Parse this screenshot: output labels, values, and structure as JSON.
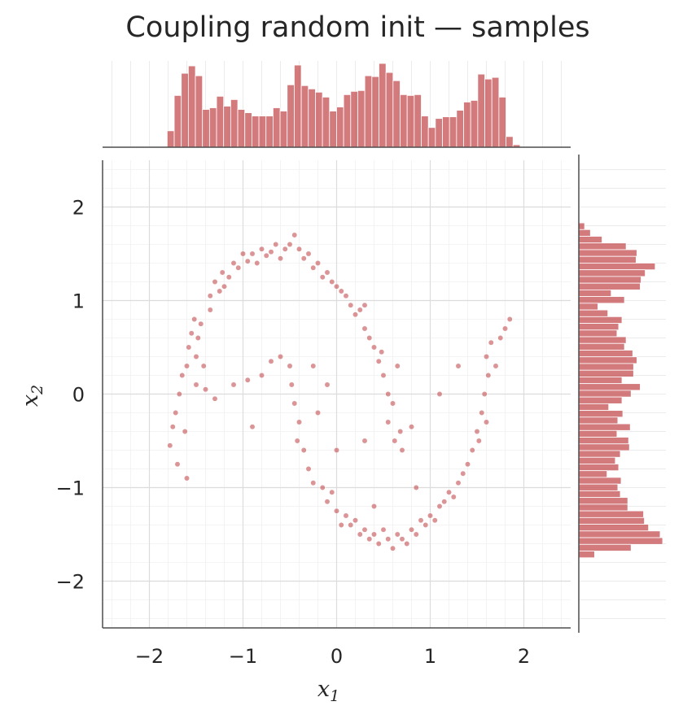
{
  "title": "Coupling  random init — samples",
  "chart_data": {
    "type": "scatter",
    "title": "Coupling  random init — samples",
    "xlabel": "x_1",
    "ylabel": "x_2",
    "xlim": [
      -2.5,
      2.5
    ],
    "ylim": [
      -2.5,
      2.5
    ],
    "xticks": [
      -2,
      -1,
      0,
      1,
      2
    ],
    "yticks": [
      -2,
      -1,
      0,
      1,
      2
    ],
    "xtick_labels": [
      "−2",
      "−1",
      "0",
      "1",
      "2"
    ],
    "ytick_labels": [
      "−2",
      "−1",
      "0",
      "1",
      "2"
    ],
    "grid": true,
    "color": "#c44e52",
    "points": [
      [
        -1.78,
        -0.55
      ],
      [
        -1.75,
        -0.35
      ],
      [
        -1.72,
        -0.2
      ],
      [
        -1.7,
        -0.75
      ],
      [
        -1.68,
        0.0
      ],
      [
        -1.65,
        0.2
      ],
      [
        -1.62,
        -0.4
      ],
      [
        -1.6,
        0.3
      ],
      [
        -1.58,
        0.5
      ],
      [
        -1.55,
        0.65
      ],
      [
        -1.52,
        0.8
      ],
      [
        -1.5,
        0.4
      ],
      [
        -1.48,
        0.6
      ],
      [
        -1.45,
        0.75
      ],
      [
        -1.5,
        0.1
      ],
      [
        -1.4,
        0.05
      ],
      [
        -1.35,
        1.05
      ],
      [
        -1.3,
        1.2
      ],
      [
        -1.25,
        1.1
      ],
      [
        -1.22,
        1.3
      ],
      [
        -1.15,
        1.25
      ],
      [
        -1.1,
        1.4
      ],
      [
        -1.05,
        1.35
      ],
      [
        -1.0,
        1.5
      ],
      [
        -0.95,
        1.42
      ],
      [
        -0.9,
        1.5
      ],
      [
        -0.85,
        1.4
      ],
      [
        -0.8,
        1.55
      ],
      [
        -0.75,
        1.48
      ],
      [
        -0.7,
        1.52
      ],
      [
        -0.65,
        1.6
      ],
      [
        -0.6,
        1.45
      ],
      [
        -0.55,
        1.55
      ],
      [
        -0.5,
        1.6
      ],
      [
        -0.45,
        1.7
      ],
      [
        -0.4,
        1.55
      ],
      [
        -0.35,
        1.45
      ],
      [
        -0.3,
        1.5
      ],
      [
        -0.25,
        1.35
      ],
      [
        -0.2,
        1.4
      ],
      [
        -0.15,
        1.25
      ],
      [
        -0.1,
        1.3
      ],
      [
        -0.05,
        1.2
      ],
      [
        0.0,
        1.15
      ],
      [
        0.05,
        1.1
      ],
      [
        0.1,
        1.05
      ],
      [
        0.15,
        0.95
      ],
      [
        0.2,
        0.85
      ],
      [
        0.25,
        0.9
      ],
      [
        0.3,
        0.7
      ],
      [
        0.35,
        0.6
      ],
      [
        0.4,
        0.5
      ],
      [
        0.45,
        0.35
      ],
      [
        0.5,
        0.2
      ],
      [
        0.48,
        0.45
      ],
      [
        0.55,
        0.0
      ],
      [
        0.6,
        -0.1
      ],
      [
        0.55,
        -0.3
      ],
      [
        0.62,
        -0.5
      ],
      [
        0.68,
        -0.4
      ],
      [
        0.7,
        -0.6
      ],
      [
        0.8,
        -0.35
      ],
      [
        0.65,
        0.3
      ],
      [
        0.3,
        0.95
      ],
      [
        -1.2,
        1.15
      ],
      [
        -1.35,
        0.9
      ],
      [
        -1.42,
        0.3
      ],
      [
        -1.3,
        -0.05
      ],
      [
        -1.1,
        0.1
      ],
      [
        -0.95,
        0.15
      ],
      [
        -0.8,
        0.2
      ],
      [
        -0.7,
        0.35
      ],
      [
        -0.9,
        -0.35
      ],
      [
        -1.6,
        -0.9
      ],
      [
        -0.6,
        0.4
      ],
      [
        -0.5,
        0.3
      ],
      [
        -0.48,
        0.1
      ],
      [
        -0.45,
        -0.1
      ],
      [
        -0.4,
        -0.3
      ],
      [
        -0.42,
        -0.5
      ],
      [
        -0.35,
        -0.6
      ],
      [
        -0.3,
        -0.8
      ],
      [
        -0.25,
        0.3
      ],
      [
        -0.2,
        -0.2
      ],
      [
        -0.25,
        -0.95
      ],
      [
        -0.15,
        -1.0
      ],
      [
        -0.1,
        -1.15
      ],
      [
        -0.05,
        -1.05
      ],
      [
        0.0,
        -1.25
      ],
      [
        0.05,
        -1.4
      ],
      [
        0.1,
        -1.3
      ],
      [
        0.15,
        -1.4
      ],
      [
        0.2,
        -1.35
      ],
      [
        0.25,
        -1.5
      ],
      [
        0.3,
        -1.45
      ],
      [
        0.35,
        -1.55
      ],
      [
        0.4,
        -1.5
      ],
      [
        0.45,
        -1.6
      ],
      [
        0.5,
        -1.45
      ],
      [
        0.55,
        -1.55
      ],
      [
        0.6,
        -1.65
      ],
      [
        0.65,
        -1.5
      ],
      [
        0.7,
        -1.55
      ],
      [
        0.75,
        -1.6
      ],
      [
        0.8,
        -1.45
      ],
      [
        0.85,
        -1.5
      ],
      [
        0.9,
        -1.35
      ],
      [
        0.95,
        -1.4
      ],
      [
        1.0,
        -1.3
      ],
      [
        1.05,
        -1.35
      ],
      [
        1.1,
        -1.2
      ],
      [
        1.15,
        -1.15
      ],
      [
        1.2,
        -1.05
      ],
      [
        1.25,
        -1.1
      ],
      [
        1.3,
        -0.95
      ],
      [
        1.35,
        -0.85
      ],
      [
        1.4,
        -0.75
      ],
      [
        1.45,
        -0.6
      ],
      [
        1.5,
        -0.4
      ],
      [
        1.52,
        -0.5
      ],
      [
        1.55,
        -0.2
      ],
      [
        1.6,
        -0.3
      ],
      [
        1.58,
        0.0
      ],
      [
        1.62,
        0.2
      ],
      [
        1.6,
        0.4
      ],
      [
        1.65,
        0.55
      ],
      [
        1.7,
        0.3
      ],
      [
        1.75,
        0.6
      ],
      [
        1.8,
        0.7
      ],
      [
        1.85,
        0.8
      ],
      [
        1.3,
        0.3
      ],
      [
        1.1,
        0.0
      ],
      [
        -0.1,
        0.1
      ],
      [
        0.3,
        -0.5
      ],
      [
        0.0,
        -0.6
      ],
      [
        0.85,
        -1.0
      ],
      [
        0.4,
        -1.2
      ]
    ],
    "marginal_x": {
      "type": "bar",
      "range": [
        -1.81,
        1.96
      ],
      "counts": [
        20,
        63,
        90,
        99,
        87,
        46,
        48,
        62,
        50,
        58,
        46,
        42,
        38,
        38,
        38,
        48,
        44,
        76,
        100,
        75,
        71,
        67,
        61,
        44,
        49,
        64,
        68,
        69,
        87,
        86,
        102,
        91,
        81,
        64,
        63,
        64,
        38,
        24,
        35,
        37,
        37,
        45,
        55,
        57,
        89,
        83,
        85,
        61,
        13,
        3
      ]
    },
    "marginal_y": {
      "type": "bar",
      "orientation": "horizontal",
      "range_top_to_bottom": [
        1.83,
        -1.75
      ],
      "counts": [
        7,
        14,
        28,
        57,
        70,
        69,
        92,
        80,
        75,
        74,
        39,
        55,
        23,
        35,
        52,
        48,
        46,
        57,
        55,
        65,
        70,
        66,
        66,
        52,
        74,
        63,
        52,
        36,
        53,
        47,
        62,
        46,
        60,
        61,
        50,
        44,
        48,
        34,
        51,
        47,
        50,
        59,
        59,
        78,
        79,
        84,
        98,
        101,
        63,
        19
      ]
    }
  }
}
